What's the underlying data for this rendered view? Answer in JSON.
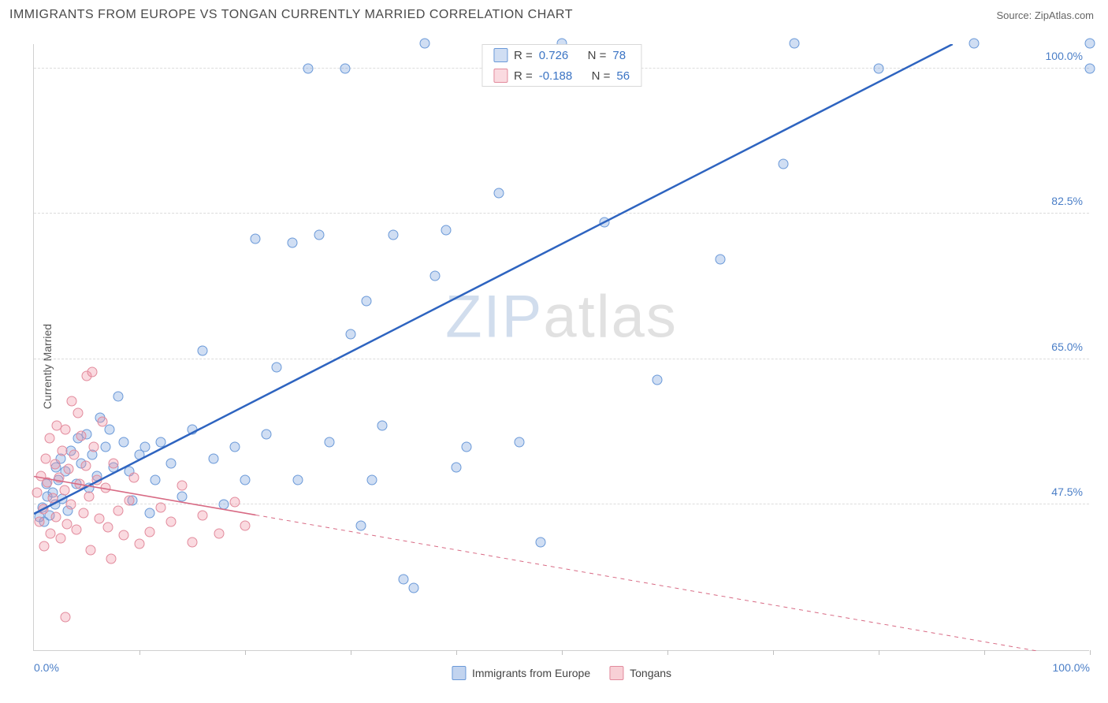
{
  "title": "IMMIGRANTS FROM EUROPE VS TONGAN CURRENTLY MARRIED CORRELATION CHART",
  "source": "Source: ZipAtlas.com",
  "ylabel": "Currently Married",
  "chart": {
    "type": "scatter",
    "xlim": [
      0,
      100
    ],
    "ylim": [
      30,
      103
    ],
    "background_color": "#ffffff",
    "grid_color": "#dcdcdc",
    "axis_color": "#d0d0d0",
    "tick_label_color": "#4a7ec7",
    "yticks": [
      47.5,
      65.0,
      82.5,
      100.0
    ],
    "ytick_labels": [
      "47.5%",
      "65.0%",
      "82.5%",
      "100.0%"
    ],
    "xtick_marks": [
      10,
      20,
      30,
      40,
      50,
      60,
      70,
      80,
      90,
      100
    ],
    "xtick_labels": [
      {
        "pos": 0,
        "label": "0.0%"
      },
      {
        "pos": 100,
        "label": "100.0%"
      }
    ],
    "marker_radius": 6.5,
    "series": [
      {
        "name": "Immigrants from Europe",
        "fill": "rgba(120,160,220,0.35)",
        "stroke": "#6a99d8",
        "trend_color": "#2e64c0",
        "trend_width": 2.5,
        "trend_dash": "none",
        "trend_from": [
          0,
          46.5
        ],
        "trend_to": [
          87,
          103
        ],
        "R": "0.726",
        "N": "78",
        "points": [
          [
            0.5,
            46
          ],
          [
            0.8,
            47.2
          ],
          [
            1,
            45.5
          ],
          [
            1.2,
            50
          ],
          [
            1.3,
            48.5
          ],
          [
            1.5,
            46.2
          ],
          [
            1.8,
            49
          ],
          [
            2,
            47.5
          ],
          [
            2.1,
            52
          ],
          [
            2.3,
            50.5
          ],
          [
            2.5,
            53
          ],
          [
            2.7,
            48.2
          ],
          [
            3,
            51.5
          ],
          [
            3.2,
            46.8
          ],
          [
            3.5,
            54
          ],
          [
            4,
            50
          ],
          [
            4.2,
            55.5
          ],
          [
            4.5,
            52.5
          ],
          [
            5,
            56
          ],
          [
            5.2,
            49.5
          ],
          [
            5.5,
            53.5
          ],
          [
            6,
            51
          ],
          [
            6.3,
            58
          ],
          [
            6.8,
            54.5
          ],
          [
            7.2,
            56.5
          ],
          [
            7.5,
            52
          ],
          [
            8,
            60.5
          ],
          [
            8.5,
            55
          ],
          [
            9,
            51.5
          ],
          [
            9.3,
            48
          ],
          [
            10,
            53.5
          ],
          [
            10.5,
            54.5
          ],
          [
            11,
            46.5
          ],
          [
            11.5,
            50.5
          ],
          [
            12,
            55
          ],
          [
            13,
            52.5
          ],
          [
            14,
            48.5
          ],
          [
            15,
            56.5
          ],
          [
            16,
            66
          ],
          [
            17,
            53
          ],
          [
            18,
            47.5
          ],
          [
            19,
            54.5
          ],
          [
            20,
            50.5
          ],
          [
            21,
            79.5
          ],
          [
            22,
            56
          ],
          [
            23,
            64
          ],
          [
            24.5,
            79
          ],
          [
            25,
            50.5
          ],
          [
            26,
            100
          ],
          [
            27,
            80
          ],
          [
            28,
            55
          ],
          [
            29.5,
            100
          ],
          [
            30,
            68
          ],
          [
            31,
            45
          ],
          [
            31.5,
            72
          ],
          [
            32,
            50.5
          ],
          [
            33,
            57
          ],
          [
            34,
            80
          ],
          [
            35,
            38.5
          ],
          [
            36,
            37.5
          ],
          [
            37,
            103
          ],
          [
            38,
            75
          ],
          [
            39,
            80.5
          ],
          [
            40,
            52
          ],
          [
            41,
            54.5
          ],
          [
            44,
            85
          ],
          [
            46,
            55
          ],
          [
            48,
            43
          ],
          [
            50,
            103
          ],
          [
            54,
            81.5
          ],
          [
            59,
            62.5
          ],
          [
            65,
            77
          ],
          [
            71,
            88.5
          ],
          [
            72,
            103
          ],
          [
            80,
            100
          ],
          [
            89,
            103
          ],
          [
            100,
            103
          ],
          [
            100,
            100
          ]
        ]
      },
      {
        "name": "Tongans",
        "fill": "rgba(240,150,165,0.35)",
        "stroke": "#e28a9c",
        "trend_color": "#d86a84",
        "trend_width": 1.6,
        "trend_dash": "solid_then_dashed",
        "trend_solid_to_x": 21,
        "trend_from": [
          0,
          51
        ],
        "trend_to": [
          95,
          30
        ],
        "R": "-0.188",
        "N": "56",
        "points": [
          [
            0.3,
            49
          ],
          [
            0.5,
            45.5
          ],
          [
            0.7,
            51
          ],
          [
            0.9,
            47
          ],
          [
            1,
            42.5
          ],
          [
            1.1,
            53
          ],
          [
            1.3,
            50.2
          ],
          [
            1.5,
            55.5
          ],
          [
            1.6,
            44
          ],
          [
            1.8,
            48.3
          ],
          [
            2,
            52.4
          ],
          [
            2.1,
            46
          ],
          [
            2.2,
            57
          ],
          [
            2.4,
            50.8
          ],
          [
            2.5,
            43.5
          ],
          [
            2.7,
            54
          ],
          [
            2.9,
            49.2
          ],
          [
            3,
            56.5
          ],
          [
            3.1,
            45.2
          ],
          [
            3.3,
            51.8
          ],
          [
            3.5,
            47.5
          ],
          [
            3.6,
            60
          ],
          [
            3.8,
            53.5
          ],
          [
            4,
            44.5
          ],
          [
            4.2,
            58.5
          ],
          [
            4.3,
            50
          ],
          [
            4.5,
            55.8
          ],
          [
            4.7,
            46.5
          ],
          [
            4.9,
            52.2
          ],
          [
            5,
            63
          ],
          [
            5.2,
            48.5
          ],
          [
            5.4,
            42
          ],
          [
            5.5,
            63.5
          ],
          [
            5.7,
            54.5
          ],
          [
            6,
            50.5
          ],
          [
            6.2,
            45.8
          ],
          [
            6.5,
            57.5
          ],
          [
            6.8,
            49.5
          ],
          [
            7,
            44.8
          ],
          [
            7.3,
            41
          ],
          [
            7.5,
            52.5
          ],
          [
            8,
            46.8
          ],
          [
            8.5,
            43.8
          ],
          [
            9,
            48
          ],
          [
            9.5,
            50.8
          ],
          [
            10,
            42.8
          ],
          [
            11,
            44.2
          ],
          [
            12,
            47.2
          ],
          [
            13,
            45.5
          ],
          [
            14,
            49.8
          ],
          [
            15,
            43
          ],
          [
            16,
            46.2
          ],
          [
            17.5,
            44
          ],
          [
            19,
            47.8
          ],
          [
            20,
            45
          ],
          [
            3,
            34
          ]
        ]
      }
    ]
  },
  "legend_top": {
    "r_label": "R =",
    "n_label": "N ="
  },
  "legend_bottom": [
    {
      "swatch_fill": "rgba(120,160,220,0.45)",
      "swatch_stroke": "#6a99d8",
      "label": "Immigrants from Europe"
    },
    {
      "swatch_fill": "rgba(240,150,165,0.45)",
      "swatch_stroke": "#e28a9c",
      "label": "Tongans"
    }
  ],
  "watermark": {
    "a": "ZIP",
    "b": "atlas"
  }
}
